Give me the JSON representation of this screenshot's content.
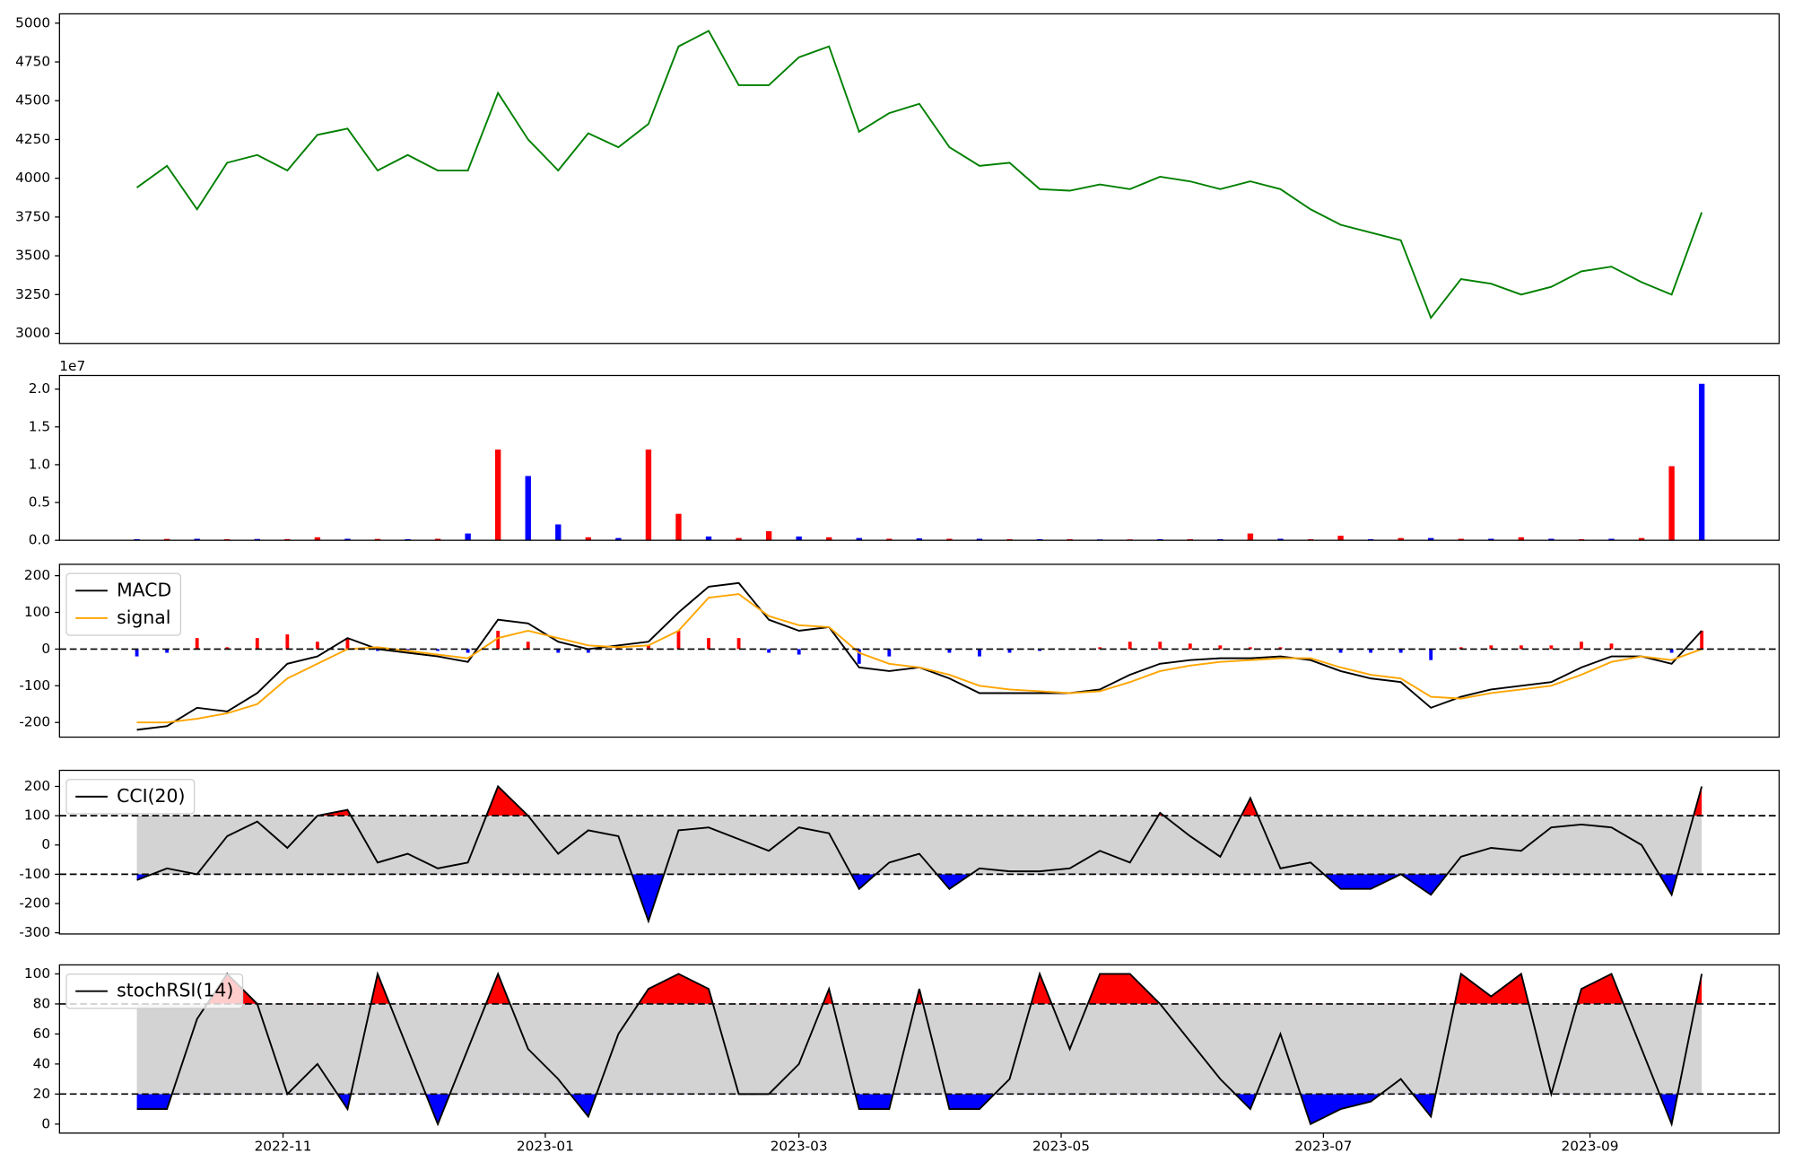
{
  "chart_data": [
    {
      "type": "line",
      "color": "green",
      "x": [
        "2022-09-28",
        "2022-10-05",
        "2022-10-12",
        "2022-10-19",
        "2022-10-26",
        "2022-11-02",
        "2022-11-09",
        "2022-11-16",
        "2022-11-23",
        "2022-11-30",
        "2022-12-07",
        "2022-12-14",
        "2022-12-21",
        "2022-12-28",
        "2023-01-04",
        "2023-01-11",
        "2023-01-18",
        "2023-01-25",
        "2023-02-01",
        "2023-02-08",
        "2023-02-15",
        "2023-02-22",
        "2023-03-01",
        "2023-03-08",
        "2023-03-15",
        "2023-03-22",
        "2023-03-29",
        "2023-04-05",
        "2023-04-12",
        "2023-04-19",
        "2023-04-26",
        "2023-05-03",
        "2023-05-10",
        "2023-05-17",
        "2023-05-24",
        "2023-05-31",
        "2023-06-07",
        "2023-06-14",
        "2023-06-21",
        "2023-06-28",
        "2023-07-05",
        "2023-07-12",
        "2023-07-19",
        "2023-07-26",
        "2023-08-02",
        "2023-08-09",
        "2023-08-16",
        "2023-08-23",
        "2023-08-30",
        "2023-09-06",
        "2023-09-13",
        "2023-09-20",
        "2023-09-27"
      ],
      "values": [
        3940,
        4080,
        3800,
        4100,
        4150,
        4050,
        4280,
        4320,
        4050,
        4150,
        4050,
        4050,
        4550,
        4250,
        4050,
        4290,
        4200,
        4350,
        4850,
        4950,
        4600,
        4600,
        4780,
        4850,
        4300,
        4420,
        4480,
        4200,
        4080,
        4100,
        3930,
        3920,
        3960,
        3930,
        4010,
        3980,
        3930,
        3980,
        3930,
        3800,
        3700,
        3650,
        3600,
        3100,
        3350,
        3320,
        3250,
        3300,
        3400,
        3430,
        3330,
        3250,
        3780
      ],
      "xlim": [
        "2022-09-10",
        "2023-10-15"
      ],
      "ylim": [
        2935,
        5060
      ],
      "yticks": [
        3000,
        3250,
        3500,
        3750,
        4000,
        4250,
        4500,
        4750,
        5000
      ]
    },
    {
      "type": "bar",
      "offset_label": "1e7",
      "x": [
        "2022-09-28",
        "2022-10-05",
        "2022-10-12",
        "2022-10-19",
        "2022-10-26",
        "2022-11-02",
        "2022-11-09",
        "2022-11-16",
        "2022-11-23",
        "2022-11-30",
        "2022-12-07",
        "2022-12-14",
        "2022-12-21",
        "2022-12-28",
        "2023-01-04",
        "2023-01-11",
        "2023-01-18",
        "2023-01-25",
        "2023-02-01",
        "2023-02-08",
        "2023-02-15",
        "2023-02-22",
        "2023-03-01",
        "2023-03-08",
        "2023-03-15",
        "2023-03-22",
        "2023-03-29",
        "2023-04-05",
        "2023-04-12",
        "2023-04-19",
        "2023-04-26",
        "2023-05-03",
        "2023-05-10",
        "2023-05-17",
        "2023-05-24",
        "2023-05-31",
        "2023-06-07",
        "2023-06-14",
        "2023-06-21",
        "2023-06-28",
        "2023-07-05",
        "2023-07-12",
        "2023-07-19",
        "2023-07-26",
        "2023-08-02",
        "2023-08-09",
        "2023-08-16",
        "2023-08-23",
        "2023-08-30",
        "2023-09-06",
        "2023-09-13",
        "2023-09-20",
        "2023-09-27"
      ],
      "values": [
        150000,
        180000,
        200000,
        150000,
        170000,
        160000,
        400000,
        200000,
        180000,
        150000,
        200000,
        900000,
        12000000,
        8500000,
        2100000,
        400000,
        300000,
        12000000,
        3500000,
        500000,
        300000,
        1200000,
        500000,
        400000,
        300000,
        200000,
        250000,
        200000,
        200000,
        150000,
        150000,
        150000,
        120000,
        120000,
        150000,
        150000,
        150000,
        900000,
        200000,
        150000,
        600000,
        150000,
        300000,
        300000,
        200000,
        200000,
        400000,
        200000,
        150000,
        200000,
        300000,
        9800000,
        20700000
      ],
      "colors": [
        "blue",
        "red",
        "blue",
        "red",
        "blue",
        "red",
        "red",
        "blue",
        "red",
        "blue",
        "red",
        "blue",
        "red",
        "blue",
        "blue",
        "red",
        "blue",
        "red",
        "red",
        "blue",
        "red",
        "red",
        "blue",
        "red",
        "blue",
        "red",
        "blue",
        "red",
        "blue",
        "red",
        "blue",
        "red",
        "blue",
        "red",
        "blue",
        "red",
        "blue",
        "red",
        "blue",
        "red",
        "red",
        "blue",
        "red",
        "blue",
        "red",
        "blue",
        "red",
        "blue",
        "red",
        "blue",
        "red",
        "red",
        "blue"
      ],
      "xlim": [
        "2022-09-10",
        "2023-10-15"
      ],
      "ylim": [
        0,
        21800000
      ],
      "yticks": [
        {
          "value": 0,
          "label": "0.0"
        },
        {
          "value": 5000000,
          "label": "0.5"
        },
        {
          "value": 10000000,
          "label": "1.0"
        },
        {
          "value": 15000000,
          "label": "1.5"
        },
        {
          "value": 20000000,
          "label": "2.0"
        }
      ]
    },
    {
      "type": "line",
      "legend": "upper left",
      "x": [
        "2022-09-28",
        "2022-10-05",
        "2022-10-12",
        "2022-10-19",
        "2022-10-26",
        "2022-11-02",
        "2022-11-09",
        "2022-11-16",
        "2022-11-23",
        "2022-11-30",
        "2022-12-07",
        "2022-12-14",
        "2022-12-21",
        "2022-12-28",
        "2023-01-04",
        "2023-01-11",
        "2023-01-18",
        "2023-01-25",
        "2023-02-01",
        "2023-02-08",
        "2023-02-15",
        "2023-02-22",
        "2023-03-01",
        "2023-03-08",
        "2023-03-15",
        "2023-03-22",
        "2023-03-29",
        "2023-04-05",
        "2023-04-12",
        "2023-04-19",
        "2023-04-26",
        "2023-05-03",
        "2023-05-10",
        "2023-05-17",
        "2023-05-24",
        "2023-05-31",
        "2023-06-07",
        "2023-06-14",
        "2023-06-21",
        "2023-06-28",
        "2023-07-05",
        "2023-07-12",
        "2023-07-19",
        "2023-07-26",
        "2023-08-02",
        "2023-08-09",
        "2023-08-16",
        "2023-08-23",
        "2023-08-30",
        "2023-09-06",
        "2023-09-13",
        "2023-09-20",
        "2023-09-27"
      ],
      "series": [
        {
          "name": "MACD",
          "color": "black",
          "values": [
            -220,
            -210,
            -160,
            -170,
            -120,
            -40,
            -20,
            30,
            0,
            -10,
            -20,
            -35,
            80,
            70,
            20,
            0,
            10,
            20,
            100,
            170,
            180,
            80,
            50,
            60,
            -50,
            -60,
            -50,
            -80,
            -120,
            -120,
            -120,
            -120,
            -110,
            -70,
            -40,
            -30,
            -25,
            -25,
            -20,
            -30,
            -60,
            -80,
            -90,
            -160,
            -130,
            -110,
            -100,
            -90,
            -50,
            -20,
            -20,
            -40,
            50
          ]
        },
        {
          "name": "signal",
          "color": "orange",
          "values": [
            -200,
            -200,
            -190,
            -175,
            -150,
            -80,
            -40,
            0,
            5,
            -5,
            -15,
            -25,
            30,
            50,
            30,
            10,
            5,
            10,
            50,
            140,
            150,
            90,
            65,
            60,
            -10,
            -40,
            -50,
            -70,
            -100,
            -110,
            -115,
            -120,
            -115,
            -90,
            -60,
            -45,
            -35,
            -30,
            -25,
            -25,
            -50,
            -70,
            -80,
            -130,
            -135,
            -120,
            -110,
            -100,
            -70,
            -35,
            -20,
            -30,
            0
          ]
        }
      ],
      "histogram": {
        "up_color": "red",
        "down_color": "blue",
        "values": [
          -20,
          -10,
          30,
          5,
          30,
          40,
          20,
          30,
          -5,
          -5,
          -5,
          -10,
          50,
          20,
          -10,
          -10,
          5,
          10,
          50,
          30,
          30,
          -10,
          -15,
          0,
          -40,
          -20,
          0,
          -10,
          -20,
          -10,
          -5,
          0,
          5,
          20,
          20,
          15,
          10,
          5,
          5,
          -5,
          -10,
          -10,
          -10,
          -30,
          5,
          10,
          10,
          10,
          20,
          15,
          0,
          -10,
          50
        ]
      },
      "hlines": [
        0
      ],
      "xlim": [
        "2022-09-10",
        "2023-10-15"
      ],
      "ylim": [
        -240,
        231
      ],
      "yticks": [
        -200,
        -100,
        0,
        100,
        200
      ]
    },
    {
      "type": "line",
      "legend": "upper left",
      "band_color": "lightgray",
      "above_color": "red",
      "below_color": "blue",
      "x": [
        "2022-09-28",
        "2022-10-05",
        "2022-10-12",
        "2022-10-19",
        "2022-10-26",
        "2022-11-02",
        "2022-11-09",
        "2022-11-16",
        "2022-11-23",
        "2022-11-30",
        "2022-12-07",
        "2022-12-14",
        "2022-12-21",
        "2022-12-28",
        "2023-01-04",
        "2023-01-11",
        "2023-01-18",
        "2023-01-25",
        "2023-02-01",
        "2023-02-08",
        "2023-02-15",
        "2023-02-22",
        "2023-03-01",
        "2023-03-08",
        "2023-03-15",
        "2023-03-22",
        "2023-03-29",
        "2023-04-05",
        "2023-04-12",
        "2023-04-19",
        "2023-04-26",
        "2023-05-03",
        "2023-05-10",
        "2023-05-17",
        "2023-05-24",
        "2023-05-31",
        "2023-06-07",
        "2023-06-14",
        "2023-06-21",
        "2023-06-28",
        "2023-07-05",
        "2023-07-12",
        "2023-07-19",
        "2023-07-26",
        "2023-08-02",
        "2023-08-09",
        "2023-08-16",
        "2023-08-23",
        "2023-08-30",
        "2023-09-06",
        "2023-09-13",
        "2023-09-20",
        "2023-09-27"
      ],
      "series": [
        {
          "name": "CCI(20)",
          "color": "black",
          "values": [
            -120,
            -80,
            -100,
            30,
            80,
            -10,
            100,
            120,
            -60,
            -30,
            -80,
            -60,
            200,
            100,
            -30,
            50,
            30,
            -260,
            50,
            60,
            20,
            -20,
            60,
            40,
            -150,
            -60,
            -30,
            -150,
            -80,
            -90,
            -90,
            -80,
            -20,
            -60,
            110,
            30,
            -40,
            160,
            -80,
            -60,
            -150,
            -150,
            -100,
            -170,
            -40,
            -10,
            -20,
            60,
            70,
            60,
            0,
            -170,
            200
          ]
        }
      ],
      "hlines": [
        100,
        -100
      ],
      "xlim": [
        "2022-09-10",
        "2023-10-15"
      ],
      "ylim": [
        -304,
        255
      ],
      "yticks": [
        -300,
        -200,
        -100,
        0,
        100,
        200
      ]
    },
    {
      "type": "line",
      "legend": "upper left",
      "band_color": "lightgray",
      "above_color": "red",
      "below_color": "blue",
      "x": [
        "2022-09-28",
        "2022-10-05",
        "2022-10-12",
        "2022-10-19",
        "2022-10-26",
        "2022-11-02",
        "2022-11-09",
        "2022-11-16",
        "2022-11-23",
        "2022-11-30",
        "2022-12-07",
        "2022-12-14",
        "2022-12-21",
        "2022-12-28",
        "2023-01-04",
        "2023-01-11",
        "2023-01-18",
        "2023-01-25",
        "2023-02-01",
        "2023-02-08",
        "2023-02-15",
        "2023-02-22",
        "2023-03-01",
        "2023-03-08",
        "2023-03-15",
        "2023-03-22",
        "2023-03-29",
        "2023-04-05",
        "2023-04-12",
        "2023-04-19",
        "2023-04-26",
        "2023-05-03",
        "2023-05-10",
        "2023-05-17",
        "2023-05-24",
        "2023-05-31",
        "2023-06-07",
        "2023-06-14",
        "2023-06-21",
        "2023-06-28",
        "2023-07-05",
        "2023-07-12",
        "2023-07-19",
        "2023-07-26",
        "2023-08-02",
        "2023-08-09",
        "2023-08-16",
        "2023-08-23",
        "2023-08-30",
        "2023-09-06",
        "2023-09-13",
        "2023-09-20",
        "2023-09-27"
      ],
      "series": [
        {
          "name": "stochRSI(14)",
          "color": "black",
          "values": [
            10,
            10,
            70,
            100,
            80,
            20,
            40,
            10,
            100,
            50,
            0,
            50,
            100,
            50,
            30,
            5,
            60,
            90,
            100,
            90,
            20,
            20,
            40,
            90,
            10,
            10,
            90,
            10,
            10,
            30,
            100,
            50,
            100,
            100,
            80,
            55,
            30,
            10,
            60,
            0,
            10,
            15,
            30,
            5,
            100,
            85,
            100,
            20,
            90,
            100,
            50,
            0,
            100
          ]
        }
      ],
      "hlines": [
        80,
        20
      ],
      "xlim": [
        "2022-09-10",
        "2023-10-15"
      ],
      "ylim": [
        -6,
        106
      ],
      "yticks": [
        0,
        20,
        40,
        60,
        80,
        100
      ],
      "xticks": [
        "2022-11",
        "2023-01",
        "2023-03",
        "2023-05",
        "2023-07",
        "2023-09"
      ]
    }
  ]
}
